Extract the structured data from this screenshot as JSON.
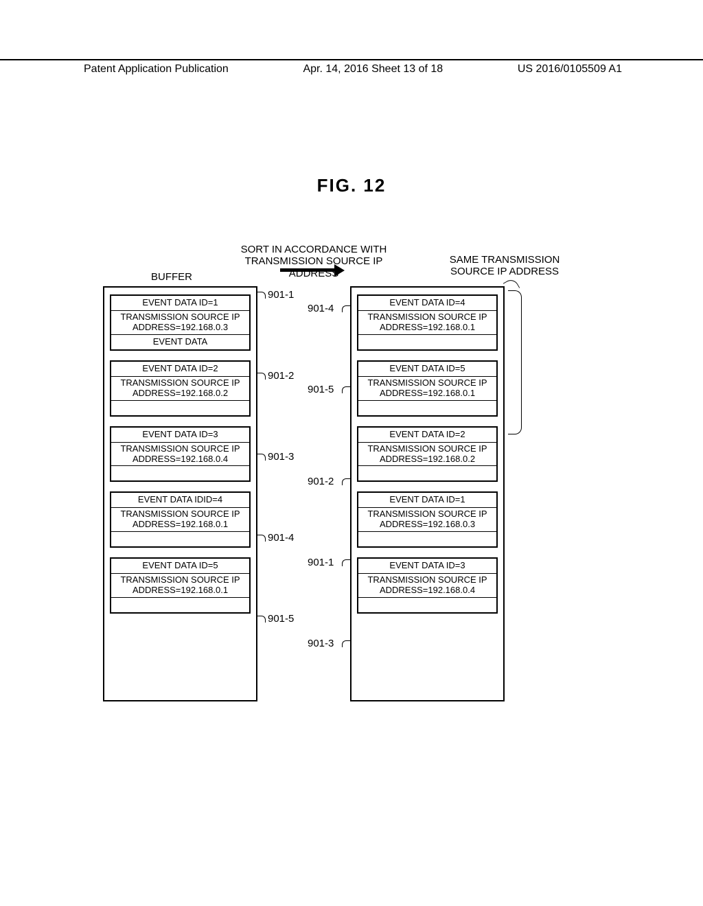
{
  "header": {
    "left": "Patent Application Publication",
    "center": "Apr. 14, 2016  Sheet 13 of 18",
    "right": "US 2016/0105509 A1"
  },
  "figure_title": "FIG. 12",
  "labels": {
    "sort": "SORT IN ACCORDANCE WITH\nTRANSMISSION SOURCE IP ADDRESS",
    "same": "SAME TRANSMISSION\nSOURCE IP ADDRESS",
    "buffer": "BUFFER"
  },
  "left_boxes": [
    {
      "ref": "901-1",
      "rows": [
        "EVENT DATA ID=1",
        "TRANSMISSION SOURCE IP\nADDRESS=192.168.0.3",
        "EVENT DATA"
      ]
    },
    {
      "ref": "901-2",
      "rows": [
        "EVENT DATA ID=2",
        "TRANSMISSION SOURCE IP\nADDRESS=192.168.0.2",
        ""
      ]
    },
    {
      "ref": "901-3",
      "rows": [
        "EVENT DATA ID=3",
        "TRANSMISSION SOURCE IP\nADDRESS=192.168.0.4",
        ""
      ]
    },
    {
      "ref": "901-4",
      "rows": [
        "EVENT DATA IDID=4",
        "TRANSMISSION SOURCE IP\nADDRESS=192.168.0.1",
        ""
      ]
    },
    {
      "ref": "901-5",
      "rows": [
        "EVENT DATA ID=5",
        "TRANSMISSION SOURCE IP\nADDRESS=192.168.0.1",
        ""
      ]
    }
  ],
  "right_boxes": [
    {
      "ref": "901-4",
      "rows": [
        "EVENT DATA ID=4",
        "TRANSMISSION SOURCE IP\nADDRESS=192.168.0.1",
        ""
      ]
    },
    {
      "ref": "901-5",
      "rows": [
        "EVENT DATA ID=5",
        "TRANSMISSION SOURCE IP\nADDRESS=192.168.0.1",
        ""
      ]
    },
    {
      "ref": "901-2",
      "rows": [
        "EVENT DATA ID=2",
        "TRANSMISSION SOURCE IP\nADDRESS=192.168.0.2",
        ""
      ]
    },
    {
      "ref": "901-1",
      "rows": [
        "EVENT DATA ID=1",
        "TRANSMISSION SOURCE IP\nADDRESS=192.168.0.3",
        ""
      ]
    },
    {
      "ref": "901-3",
      "rows": [
        "EVENT DATA ID=3",
        "TRANSMISSION SOURCE IP\nADDRESS=192.168.0.4",
        ""
      ]
    }
  ],
  "left_ref_positions": [
    80,
    198,
    316,
    434,
    552
  ],
  "right_ref_positions": [
    100,
    218,
    352,
    470,
    588
  ],
  "colors": {
    "stroke": "#000000",
    "background": "#ffffff"
  }
}
